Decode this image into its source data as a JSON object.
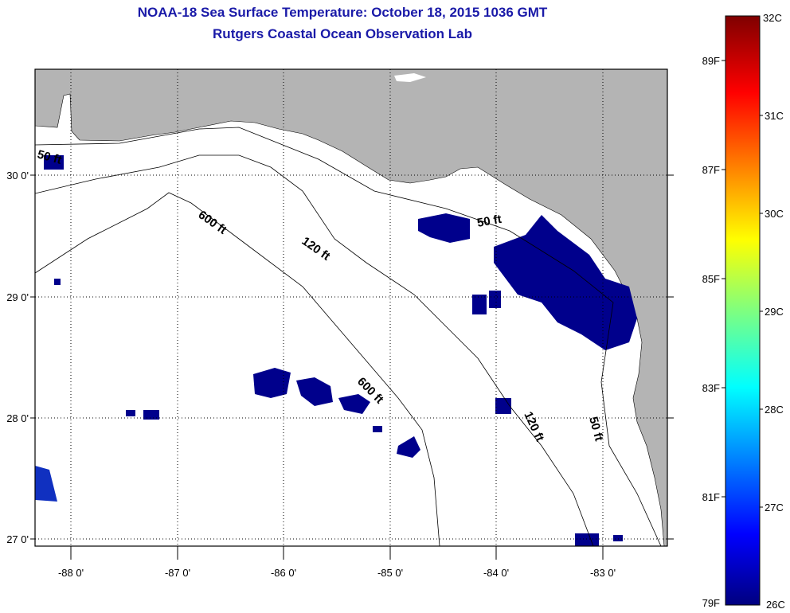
{
  "title": "NOAA-18 Sea Surface Temperature:  October 18, 2015 1036 GMT",
  "subtitle": "Rutgers Coastal Ocean Observation Lab",
  "map": {
    "lon_labels": [
      "-88 0'",
      "-87 0'",
      "-86 0'",
      "-85 0'",
      "-84 0'",
      "-83 0'"
    ],
    "lat_labels": [
      "30 0'",
      "29 0'",
      "28 0'",
      "27 0'"
    ],
    "contour_labels": {
      "c50": "50 ft",
      "c120": "120 ft",
      "c600": "600 ft"
    },
    "colors": {
      "land": "#b4b4b4",
      "sst_26c": "#00008c",
      "grid": "#000000"
    }
  },
  "colorbar": {
    "celsius": [
      "32C",
      "31C",
      "30C",
      "29C",
      "28C",
      "27C",
      "26C"
    ],
    "fahrenheit": [
      "89F",
      "87F",
      "85F",
      "83F",
      "81F",
      "79F"
    ],
    "min_c": 26,
    "max_c": 32
  }
}
